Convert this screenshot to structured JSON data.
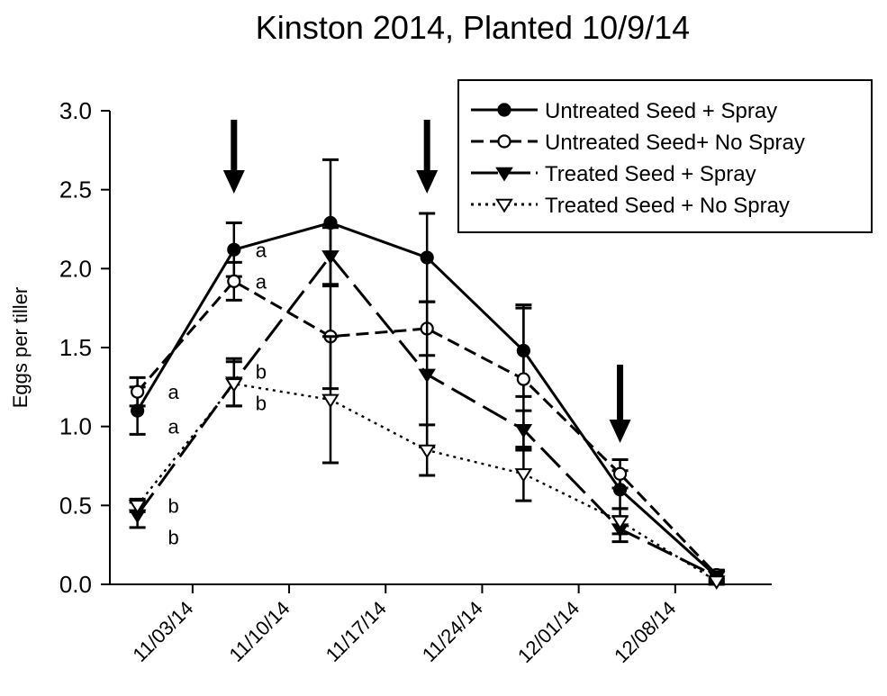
{
  "chart_data": {
    "type": "line",
    "title": "Kinston 2014, Planted 10/9/14",
    "xlabel": "",
    "ylabel": "Eggs per tiller",
    "ylim": [
      0.0,
      3.0
    ],
    "yticks": [
      "0.0",
      "0.5",
      "1.0",
      "1.5",
      "2.0",
      "2.5",
      "3.0"
    ],
    "xlim": [
      -6,
      42
    ],
    "xticks": [
      {
        "label": "11/03/14",
        "day": 0
      },
      {
        "label": "11/10/14",
        "day": 7
      },
      {
        "label": "11/17/14",
        "day": 14
      },
      {
        "label": "11/24/14",
        "day": 21
      },
      {
        "label": "12/01/14",
        "day": 28
      },
      {
        "label": "12/08/14",
        "day": 35
      }
    ],
    "x_day_from_11_03": [
      -4,
      3,
      10,
      17,
      24,
      31,
      38
    ],
    "series": [
      {
        "name": "Untreated Seed + Spray",
        "line": "solid",
        "marker": "circle-filled",
        "values": [
          1.1,
          2.12,
          2.29,
          2.07,
          1.48,
          0.6,
          0.05
        ],
        "errors": [
          0.15,
          0.17,
          0.4,
          0.28,
          0.29,
          0.12,
          0.04
        ]
      },
      {
        "name": "Untreated Seed+ No Spray",
        "line": "dashed",
        "marker": "circle-open",
        "values": [
          1.22,
          1.92,
          1.57,
          1.62,
          1.3,
          0.7,
          0.06
        ],
        "errors": [
          0.09,
          0.12,
          0.33,
          0.17,
          0.45,
          0.09,
          0.03
        ]
      },
      {
        "name": "Treated Seed + Spray",
        "line": "long-dash",
        "marker": "triangle-down-filled",
        "values": [
          0.44,
          1.28,
          2.08,
          1.33,
          0.98,
          0.35,
          0.05
        ],
        "errors": [
          0.08,
          0.15,
          0.18,
          0.46,
          0.12,
          0.08,
          0.03
        ]
      },
      {
        "name": "Treated Seed + No Spray",
        "line": "dotted",
        "marker": "triangle-down-open",
        "values": [
          0.5,
          1.27,
          1.17,
          0.85,
          0.7,
          0.4,
          0.02
        ],
        "errors": [
          0.04,
          0.14,
          0.4,
          0.16,
          0.17,
          0.08,
          0.02
        ]
      }
    ],
    "spray_arrows_day": [
      3,
      17,
      31
    ],
    "annotations": [
      {
        "text": "a",
        "day": 3,
        "value": 2.12
      },
      {
        "text": "a",
        "day": 3,
        "value": 1.92
      },
      {
        "text": "b",
        "day": 3,
        "value": 1.35
      },
      {
        "text": "b",
        "day": 3,
        "value": 1.15
      },
      {
        "text": "a",
        "day": -4,
        "value": 1.22
      },
      {
        "text": "a",
        "day": -4,
        "value": 1.0
      },
      {
        "text": "b",
        "day": -4,
        "value": 0.5
      },
      {
        "text": "b",
        "day": -4,
        "value": 0.3
      }
    ],
    "legend_position": "top-right"
  }
}
